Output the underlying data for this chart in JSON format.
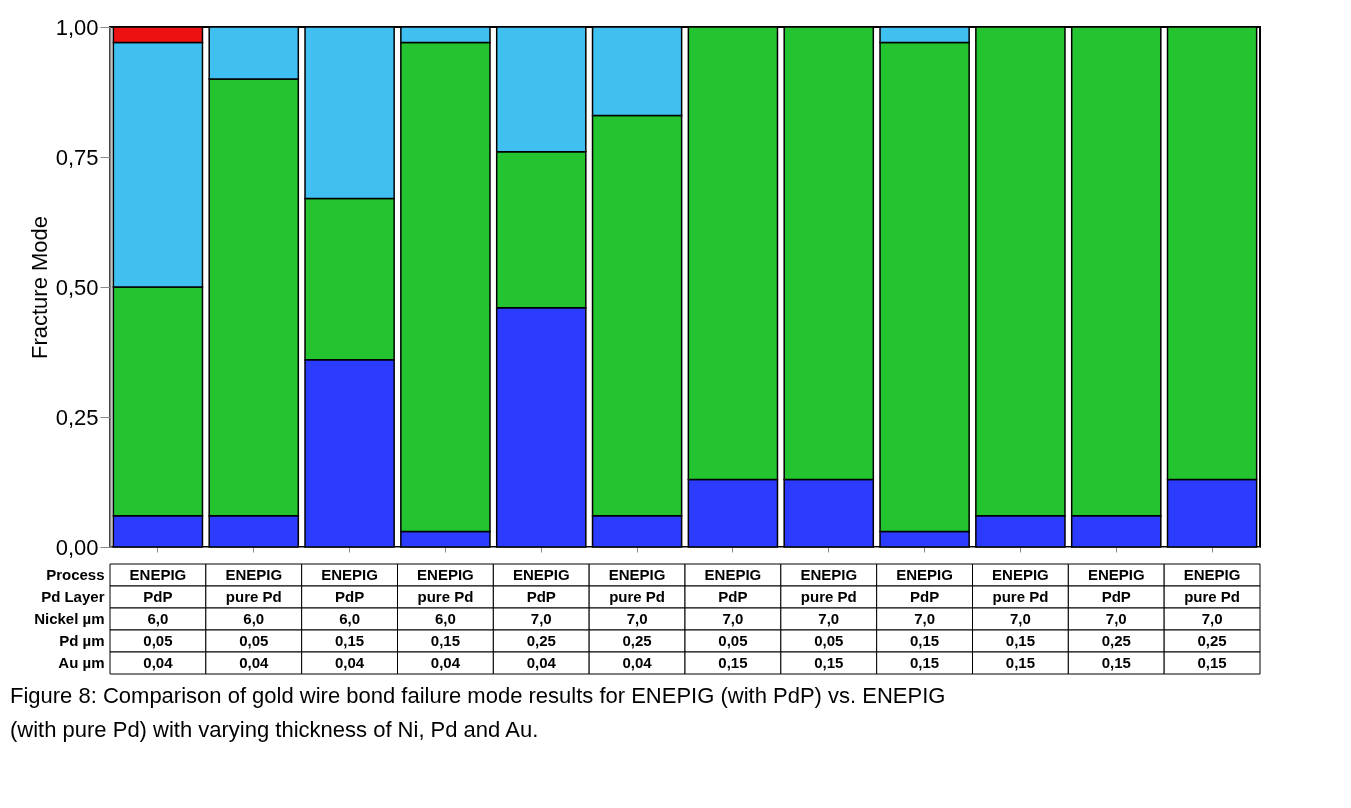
{
  "chart_data": {
    "type": "bar",
    "stacked": true,
    "ylabel": "Fracture Mode",
    "categories": [
      "ENEPIG\nPdP\n6,0\n0,05\n0,04",
      "ENEPIG\npure Pd\n6,0\n0,05\n0,04",
      "ENEPIG\nPdP\n6,0\n0,15\n0,04",
      "ENEPIG\npure Pd\n6,0\n0,15\n0,04",
      "ENEPIG\nPdP\n7,0\n0,25\n0,04",
      "ENEPIG\npure Pd\n7,0\n0,25\n0,04",
      "ENEPIG\nPdP\n7,0\n0,05\n0,15",
      "ENEPIG\npure Pd\n7,0\n0,05\n0,15",
      "ENEPIG\nPdP\n7,0\n0,15\n0,15",
      "ENEPIG\npure Pd\n7,0\n0,15\n0,15",
      "ENEPIG\nPdP\n7,0\n0,25\n0,15",
      "ENEPIG\npure Pd\n7,0\n0,25\n0,15"
    ],
    "series": [
      {
        "color": "#2b3cff",
        "values": [
          0.06,
          0.06,
          0.36,
          0.03,
          0.46,
          0.06,
          0.13,
          0.13,
          0.03,
          0.06,
          0.06,
          0.13
        ]
      },
      {
        "color": "#24c430",
        "values": [
          0.44,
          0.84,
          0.31,
          0.94,
          0.3,
          0.77,
          0.87,
          0.87,
          0.94,
          0.94,
          0.94,
          0.87
        ]
      },
      {
        "color": "#40c0f0",
        "values": [
          0.47,
          0.1,
          0.33,
          0.03,
          0.24,
          0.17,
          null,
          null,
          0.03,
          null,
          null,
          null
        ]
      },
      {
        "color": "#ee1111",
        "values": [
          0.03,
          null,
          null,
          null,
          null,
          null,
          null,
          null,
          null,
          null,
          null,
          null
        ]
      }
    ],
    "ylim": [
      0,
      1
    ],
    "yticks": [
      {
        "value": 0,
        "label": "0,00"
      },
      {
        "value": 0.25,
        "label": "0,25"
      },
      {
        "value": 0.5,
        "label": "0,50"
      },
      {
        "value": 0.75,
        "label": "0,75"
      },
      {
        "value": 1,
        "label": "1,00"
      }
    ],
    "grid": false,
    "legend": false,
    "annotations": [
      "Process",
      "Pd Layer",
      "Nickel µm",
      "Pd µm",
      "Au µm",
      "Figure 8: Comparison of gold wire bond failure mode results for ENEPIG (with PdP) vs. ENEPIG (with pure Pd) with varying thickness of Ni, Pd and Au."
    ]
  }
}
